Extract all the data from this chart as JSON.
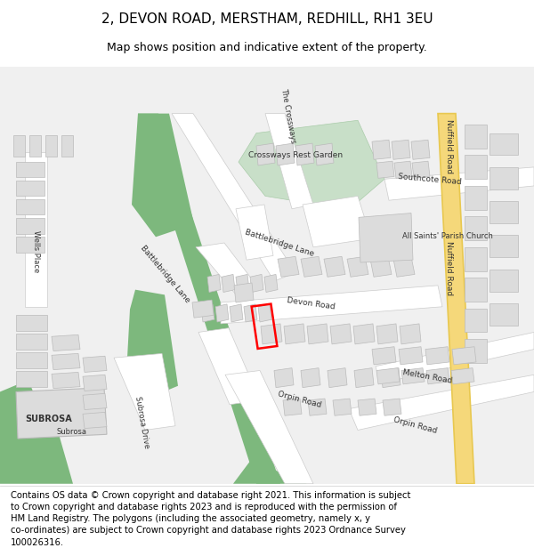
{
  "title": "2, DEVON ROAD, MERSTHAM, REDHILL, RH1 3EU",
  "subtitle": "Map shows position and indicative extent of the property.",
  "footer": "Contains OS data © Crown copyright and database right 2021. This information is subject to Crown copyright and database rights 2023 and is reproduced with the permission of HM Land Registry. The polygons (including the associated geometry, namely x, y co-ordinates) are subject to Crown copyright and database rights 2023 Ordnance Survey 100026316.",
  "bg_color": "#f0f0f0",
  "map_bg": "#f8f8f8",
  "road_color": "#ffffff",
  "road_outline": "#cccccc",
  "green_color": "#7db87d",
  "green_light": "#c8dfc8",
  "yellow_road": "#f5d87a",
  "yellow_road_outline": "#e8c850",
  "building_color": "#dcdcdc",
  "building_outline": "#bbbbbb",
  "highlight_color": "#ff0000",
  "text_color": "#444444",
  "title_fontsize": 11,
  "subtitle_fontsize": 9,
  "footer_fontsize": 7.2
}
